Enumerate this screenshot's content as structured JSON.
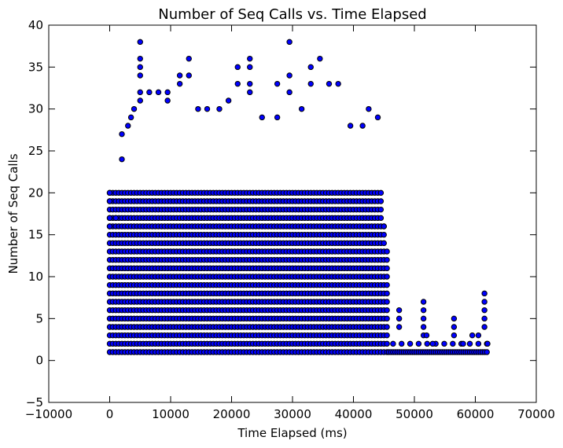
{
  "chart_data": {
    "type": "scatter",
    "title": "Number of Seq Calls vs. Time Elapsed",
    "xlabel": "Time Elapsed (ms)",
    "ylabel": "Number of Seq Calls",
    "xlim": [
      -10000,
      70000
    ],
    "ylim": [
      -5,
      40
    ],
    "xticks": [
      -10000,
      0,
      10000,
      20000,
      30000,
      40000,
      50000,
      60000,
      70000
    ],
    "xtick_labels": [
      "−10000",
      "0",
      "10000",
      "20000",
      "30000",
      "40000",
      "50000",
      "60000",
      "70000"
    ],
    "yticks": [
      -5,
      0,
      5,
      10,
      15,
      20,
      25,
      30,
      35,
      40
    ],
    "ytick_labels": [
      "−5",
      "0",
      "5",
      "10",
      "15",
      "20",
      "25",
      "30",
      "35",
      "40"
    ],
    "grid": false,
    "legend": "none",
    "marker_color": "#0000ff",
    "marker_edge_color": "#000000",
    "series": [
      {
        "values_note": "",
        "points": [
          {
            "x": 0,
            "y": 20
          },
          {
            "x": 0,
            "y": 19
          },
          {
            "x": 0,
            "y": 17
          },
          {
            "x": 0,
            "y": 16
          },
          {
            "x": 1000,
            "y": 17
          },
          {
            "x": 2000,
            "y": 27
          },
          {
            "x": 2000,
            "y": 24
          },
          {
            "x": 3000,
            "y": 28
          },
          {
            "x": 3500,
            "y": 29
          },
          {
            "x": 4000,
            "y": 30
          },
          {
            "x": 5000,
            "y": 38
          },
          {
            "x": 5000,
            "y": 36
          },
          {
            "x": 5000,
            "y": 35
          },
          {
            "x": 5000,
            "y": 34
          },
          {
            "x": 5000,
            "y": 32
          },
          {
            "x": 5000,
            "y": 31
          },
          {
            "x": 6500,
            "y": 32
          },
          {
            "x": 8000,
            "y": 32
          },
          {
            "x": 9500,
            "y": 32
          },
          {
            "x": 9500,
            "y": 31
          },
          {
            "x": 11500,
            "y": 34
          },
          {
            "x": 11500,
            "y": 33
          },
          {
            "x": 13000,
            "y": 36
          },
          {
            "x": 13000,
            "y": 34
          },
          {
            "x": 14500,
            "y": 30
          },
          {
            "x": 16000,
            "y": 30
          },
          {
            "x": 18000,
            "y": 30
          },
          {
            "x": 19500,
            "y": 31
          },
          {
            "x": 21000,
            "y": 35
          },
          {
            "x": 21000,
            "y": 33
          },
          {
            "x": 23000,
            "y": 36
          },
          {
            "x": 23000,
            "y": 35
          },
          {
            "x": 23000,
            "y": 33
          },
          {
            "x": 23000,
            "y": 32
          },
          {
            "x": 25000,
            "y": 29
          },
          {
            "x": 27500,
            "y": 33
          },
          {
            "x": 27500,
            "y": 29
          },
          {
            "x": 29500,
            "y": 38
          },
          {
            "x": 29500,
            "y": 34
          },
          {
            "x": 29500,
            "y": 32
          },
          {
            "x": 31500,
            "y": 30
          },
          {
            "x": 33000,
            "y": 35
          },
          {
            "x": 33000,
            "y": 33
          },
          {
            "x": 34500,
            "y": 36
          },
          {
            "x": 36000,
            "y": 33
          },
          {
            "x": 37500,
            "y": 33
          },
          {
            "x": 39500,
            "y": 28
          },
          {
            "x": 41500,
            "y": 28
          },
          {
            "x": 42500,
            "y": 30
          },
          {
            "x": 44000,
            "y": 29
          },
          {
            "x": 45000,
            "y": 16
          },
          {
            "x": 45500,
            "y": 13
          },
          {
            "x": 47500,
            "y": 6
          },
          {
            "x": 47500,
            "y": 5
          },
          {
            "x": 47500,
            "y": 4
          },
          {
            "x": 51500,
            "y": 7
          },
          {
            "x": 51500,
            "y": 6
          },
          {
            "x": 51500,
            "y": 5
          },
          {
            "x": 51500,
            "y": 4
          },
          {
            "x": 51500,
            "y": 3
          },
          {
            "x": 52000,
            "y": 3
          },
          {
            "x": 53000,
            "y": 2
          },
          {
            "x": 56500,
            "y": 5
          },
          {
            "x": 56500,
            "y": 4
          },
          {
            "x": 56500,
            "y": 3
          },
          {
            "x": 58000,
            "y": 2
          },
          {
            "x": 59500,
            "y": 3
          },
          {
            "x": 60500,
            "y": 3
          },
          {
            "x": 61500,
            "y": 8
          },
          {
            "x": 61500,
            "y": 7
          },
          {
            "x": 61500,
            "y": 6
          },
          {
            "x": 61500,
            "y": 5
          },
          {
            "x": 61500,
            "y": 4
          },
          {
            "x": 62000,
            "y": 2
          }
        ],
        "dense_region": {
          "x_range": [
            0,
            45800
          ],
          "y_integer_range": [
            1,
            20
          ],
          "x_step": 500,
          "upper_envelope": [
            [
              0,
              20
            ],
            [
              2000,
              24
            ],
            [
              5000,
              28
            ],
            [
              10000,
              28
            ],
            [
              12000,
              30
            ],
            [
              20000,
              30
            ],
            [
              25000,
              28
            ],
            [
              30000,
              28
            ],
            [
              35000,
              28
            ],
            [
              40000,
              27
            ],
            [
              43000,
              25
            ],
            [
              44500,
              22
            ],
            [
              45000,
              16
            ],
            [
              45800,
              10
            ]
          ]
        },
        "tail_region": {
          "x_range": [
            45800,
            62000
          ],
          "y_values": [
            1,
            2
          ],
          "x_step": 350
        }
      }
    ]
  }
}
